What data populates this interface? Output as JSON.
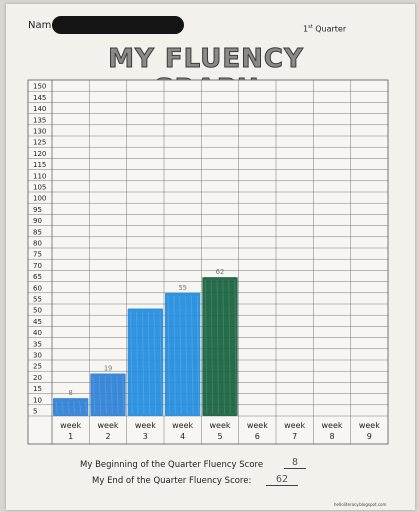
{
  "header": {
    "name_label": "Name",
    "quarter_label": "Quarter",
    "quarter_ordinal_num": "1",
    "quarter_ordinal_suffix": "st"
  },
  "chart_data": {
    "type": "bar",
    "title": "MY FLUENCY GRAPH",
    "xlabel": "",
    "ylabel": "",
    "ylim": [
      0,
      150
    ],
    "y_ticks": [
      5,
      10,
      15,
      20,
      25,
      30,
      35,
      40,
      45,
      50,
      55,
      60,
      65,
      70,
      75,
      80,
      85,
      90,
      95,
      100,
      105,
      110,
      115,
      120,
      125,
      130,
      135,
      140,
      145,
      150
    ],
    "categories": [
      "week 1",
      "week 2",
      "week 3",
      "week 4",
      "week 5",
      "week 6",
      "week 7",
      "week 8",
      "week 9"
    ],
    "category_lines": [
      [
        "week",
        "1"
      ],
      [
        "week",
        "2"
      ],
      [
        "week",
        "3"
      ],
      [
        "week",
        "4"
      ],
      [
        "week",
        "5"
      ],
      [
        "week",
        "6"
      ],
      [
        "week",
        "7"
      ],
      [
        "week",
        "8"
      ],
      [
        "week",
        "9"
      ]
    ],
    "values": [
      8,
      19,
      48,
      55,
      62,
      null,
      null,
      null,
      null
    ],
    "bar_labels": [
      "8",
      "19",
      "",
      "55",
      "62",
      "",
      "",
      "",
      ""
    ],
    "bar_colors": [
      "#2a7fd6",
      "#2a7fd6",
      "#1f8be0",
      "#1f8be0",
      "#15603e",
      "",
      "",
      "",
      ""
    ],
    "grid": true
  },
  "footer": {
    "beginning_label": "My Beginning of the Quarter Fluency Score",
    "beginning_value": "8",
    "end_label": "My End of the Quarter Fluency Score:",
    "end_value": "62",
    "credit": "helloliteracy.blogspot.com"
  }
}
